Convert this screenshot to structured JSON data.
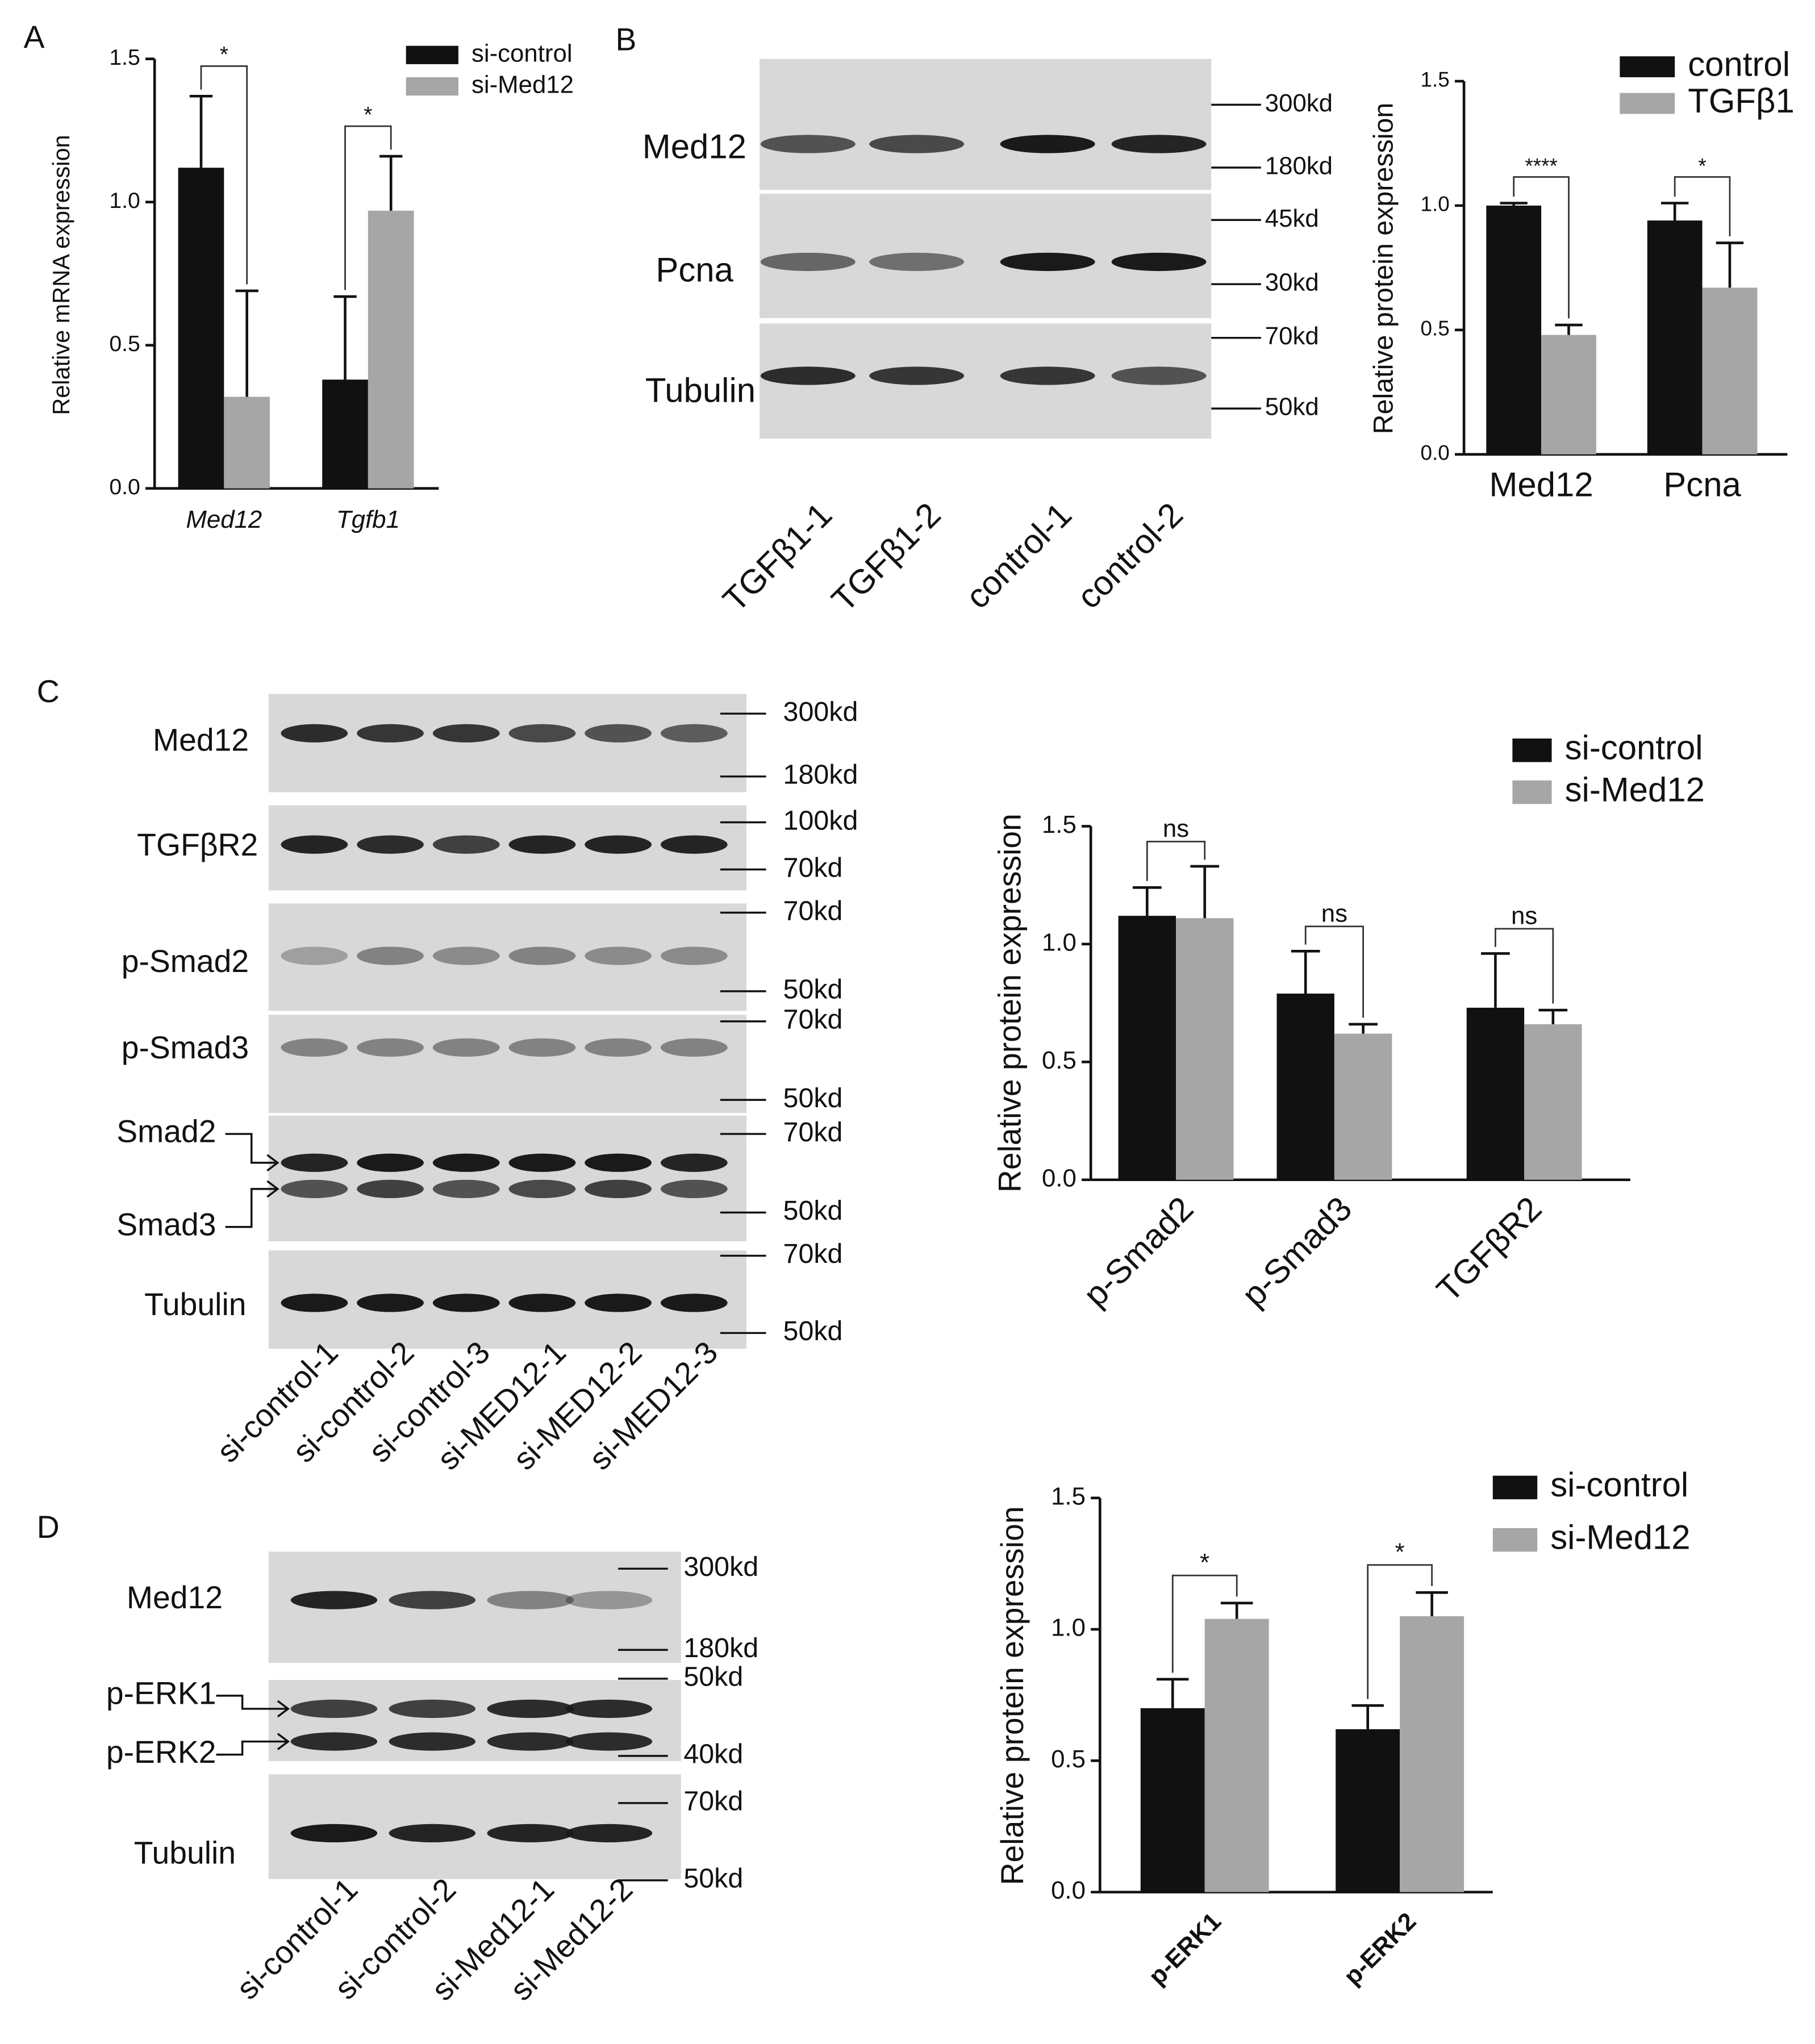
{
  "panel_labels": [
    "A",
    "B",
    "C",
    "D"
  ],
  "blots": [
    {
      "rows": [
        "Med12",
        "Pcna",
        "Tubulin"
      ],
      "markers": [
        "300kd",
        "180kd",
        "45kd",
        "30kd",
        "70kd",
        "50kd"
      ],
      "lanes": [
        "TGFβ1-1",
        "TGFβ1-2",
        "control-1",
        "control-2"
      ]
    },
    {
      "rows": [
        "Med12",
        "TGFβR2",
        "p-Smad2",
        "p-Smad3",
        "Smad2",
        "Smad3",
        "Tubulin"
      ],
      "markers": [
        "300kd",
        "180kd",
        "100kd",
        "70kd",
        "70kd",
        "50kd",
        "70kd",
        "50kd",
        "70kd",
        "50kd",
        "70kd",
        "50kd"
      ],
      "lanes": [
        "si-control-1",
        "si-control-2",
        "si-control-3",
        "si-MED12-1",
        "si-MED12-2",
        "si-MED12-3"
      ]
    },
    {
      "rows": [
        "Med12",
        "p-ERK1",
        "p-ERK2",
        "Tubulin"
      ],
      "markers": [
        "300kd",
        "180kd",
        "50kd",
        "40kd",
        "70kd",
        "50kd"
      ],
      "lanes": [
        "si-control-1",
        "si-control-2",
        "si-Med12-1",
        "si-Med12-2"
      ]
    }
  ],
  "chart_data": [
    {
      "type": "bar",
      "y_label": "Relative mRNA expression",
      "categories": [
        "Med12",
        "Tgfb1"
      ],
      "series": [
        {
          "name": "si-control",
          "color": "#111111",
          "values": [
            1.12,
            0.38
          ],
          "errors": [
            0.25,
            0.29
          ]
        },
        {
          "name": "si-Med12",
          "color": "#a6a6a6",
          "values": [
            0.32,
            0.97
          ],
          "errors": [
            0.37,
            0.19
          ]
        }
      ],
      "annotations": [
        "*",
        "*"
      ],
      "ylim": [
        0,
        1.5
      ],
      "yticks": [
        {
          "value": 0,
          "label": "0.0"
        },
        0.5,
        {
          "value": 1,
          "label": "1.0"
        },
        1.5
      ]
    },
    {
      "type": "bar",
      "y_label": "Relative protein expression",
      "categories": [
        "Med12",
        "Pcna"
      ],
      "series": [
        {
          "name": "control",
          "color": "#111111",
          "values": [
            1.0,
            0.94
          ],
          "errors": [
            0.01,
            0.07
          ]
        },
        {
          "name": "TGFβ1",
          "color": "#a6a6a6",
          "values": [
            0.48,
            0.67
          ],
          "errors": [
            0.04,
            0.18
          ]
        }
      ],
      "annotations": [
        "****",
        "*"
      ],
      "ylim": [
        0,
        1.5
      ],
      "yticks": [
        {
          "value": 0,
          "label": "0.0"
        },
        0.5,
        {
          "value": 1,
          "label": "1.0"
        },
        1.5
      ]
    },
    {
      "type": "bar",
      "y_label": "Relative protein expression",
      "categories": [
        "p-Smad2",
        "p-Smad3",
        "TGFβR2"
      ],
      "series": [
        {
          "name": "si-control",
          "color": "#111111",
          "values": [
            1.12,
            0.79,
            0.73
          ],
          "errors": [
            0.12,
            0.18,
            0.23
          ]
        },
        {
          "name": "si-Med12",
          "color": "#a6a6a6",
          "values": [
            1.11,
            0.62,
            0.66
          ],
          "errors": [
            0.22,
            0.04,
            0.06
          ]
        }
      ],
      "annotations": [
        "ns",
        "ns",
        "ns"
      ],
      "ylim": [
        0,
        1.5
      ],
      "yticks": [
        {
          "value": 0,
          "label": "0.0"
        },
        0.5,
        {
          "value": 1,
          "label": "1.0"
        },
        1.5
      ]
    },
    {
      "type": "bar",
      "y_label": "Relative protein expression",
      "categories": [
        "p-ERK1",
        "p-ERK2"
      ],
      "series": [
        {
          "name": "si-control",
          "color": "#111111",
          "values": [
            0.7,
            0.62
          ],
          "errors": [
            0.11,
            0.09
          ]
        },
        {
          "name": "si-Med12",
          "color": "#a6a6a6",
          "values": [
            1.04,
            1.05
          ],
          "errors": [
            0.06,
            0.09
          ]
        }
      ],
      "annotations": [
        "*",
        "*"
      ],
      "ylim": [
        0,
        1.5
      ],
      "yticks": [
        {
          "value": 0,
          "label": "0.0"
        },
        0.5,
        {
          "value": 1,
          "label": "1.0"
        },
        1.5
      ]
    }
  ]
}
